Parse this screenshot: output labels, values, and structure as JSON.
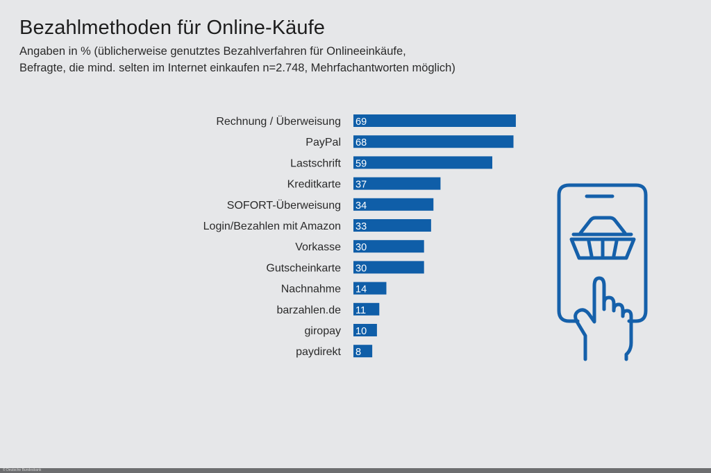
{
  "title": "Bezahlmethoden für Online-Käufe",
  "subtitle_line1": "Angaben in % (üblicherweise genutztes Bezahlverfahren für Onlineeinkäufe,",
  "subtitle_line2": "Befragte, die mind. selten im Internet einkaufen n=2.748, Mehrfachantworten möglich)",
  "footer_credit": "© Deutsche Bundesbank",
  "colors": {
    "bar": "#0f5ea8",
    "background": "#e6e7e9",
    "icon": "#1560aa"
  },
  "illustration_icon": "smartphone-shopping-basket-hand-icon",
  "chart_data": {
    "type": "bar",
    "orientation": "horizontal",
    "title": "Bezahlmethoden für Online-Käufe",
    "categories": [
      "Rechnung / Überweisung",
      "PayPal",
      "Lastschrift",
      "Kreditkarte",
      "SOFORT-Überweisung",
      "Login/Bezahlen mit Amazon",
      "Vorkasse",
      "Gutscheinkarte",
      "Nachnahme",
      "barzahlen.de",
      "giropay",
      "paydirekt"
    ],
    "values": [
      69,
      68,
      59,
      37,
      34,
      33,
      30,
      30,
      14,
      11,
      10,
      8
    ],
    "xlim": [
      0,
      100
    ],
    "grid": false,
    "legend": "none"
  }
}
